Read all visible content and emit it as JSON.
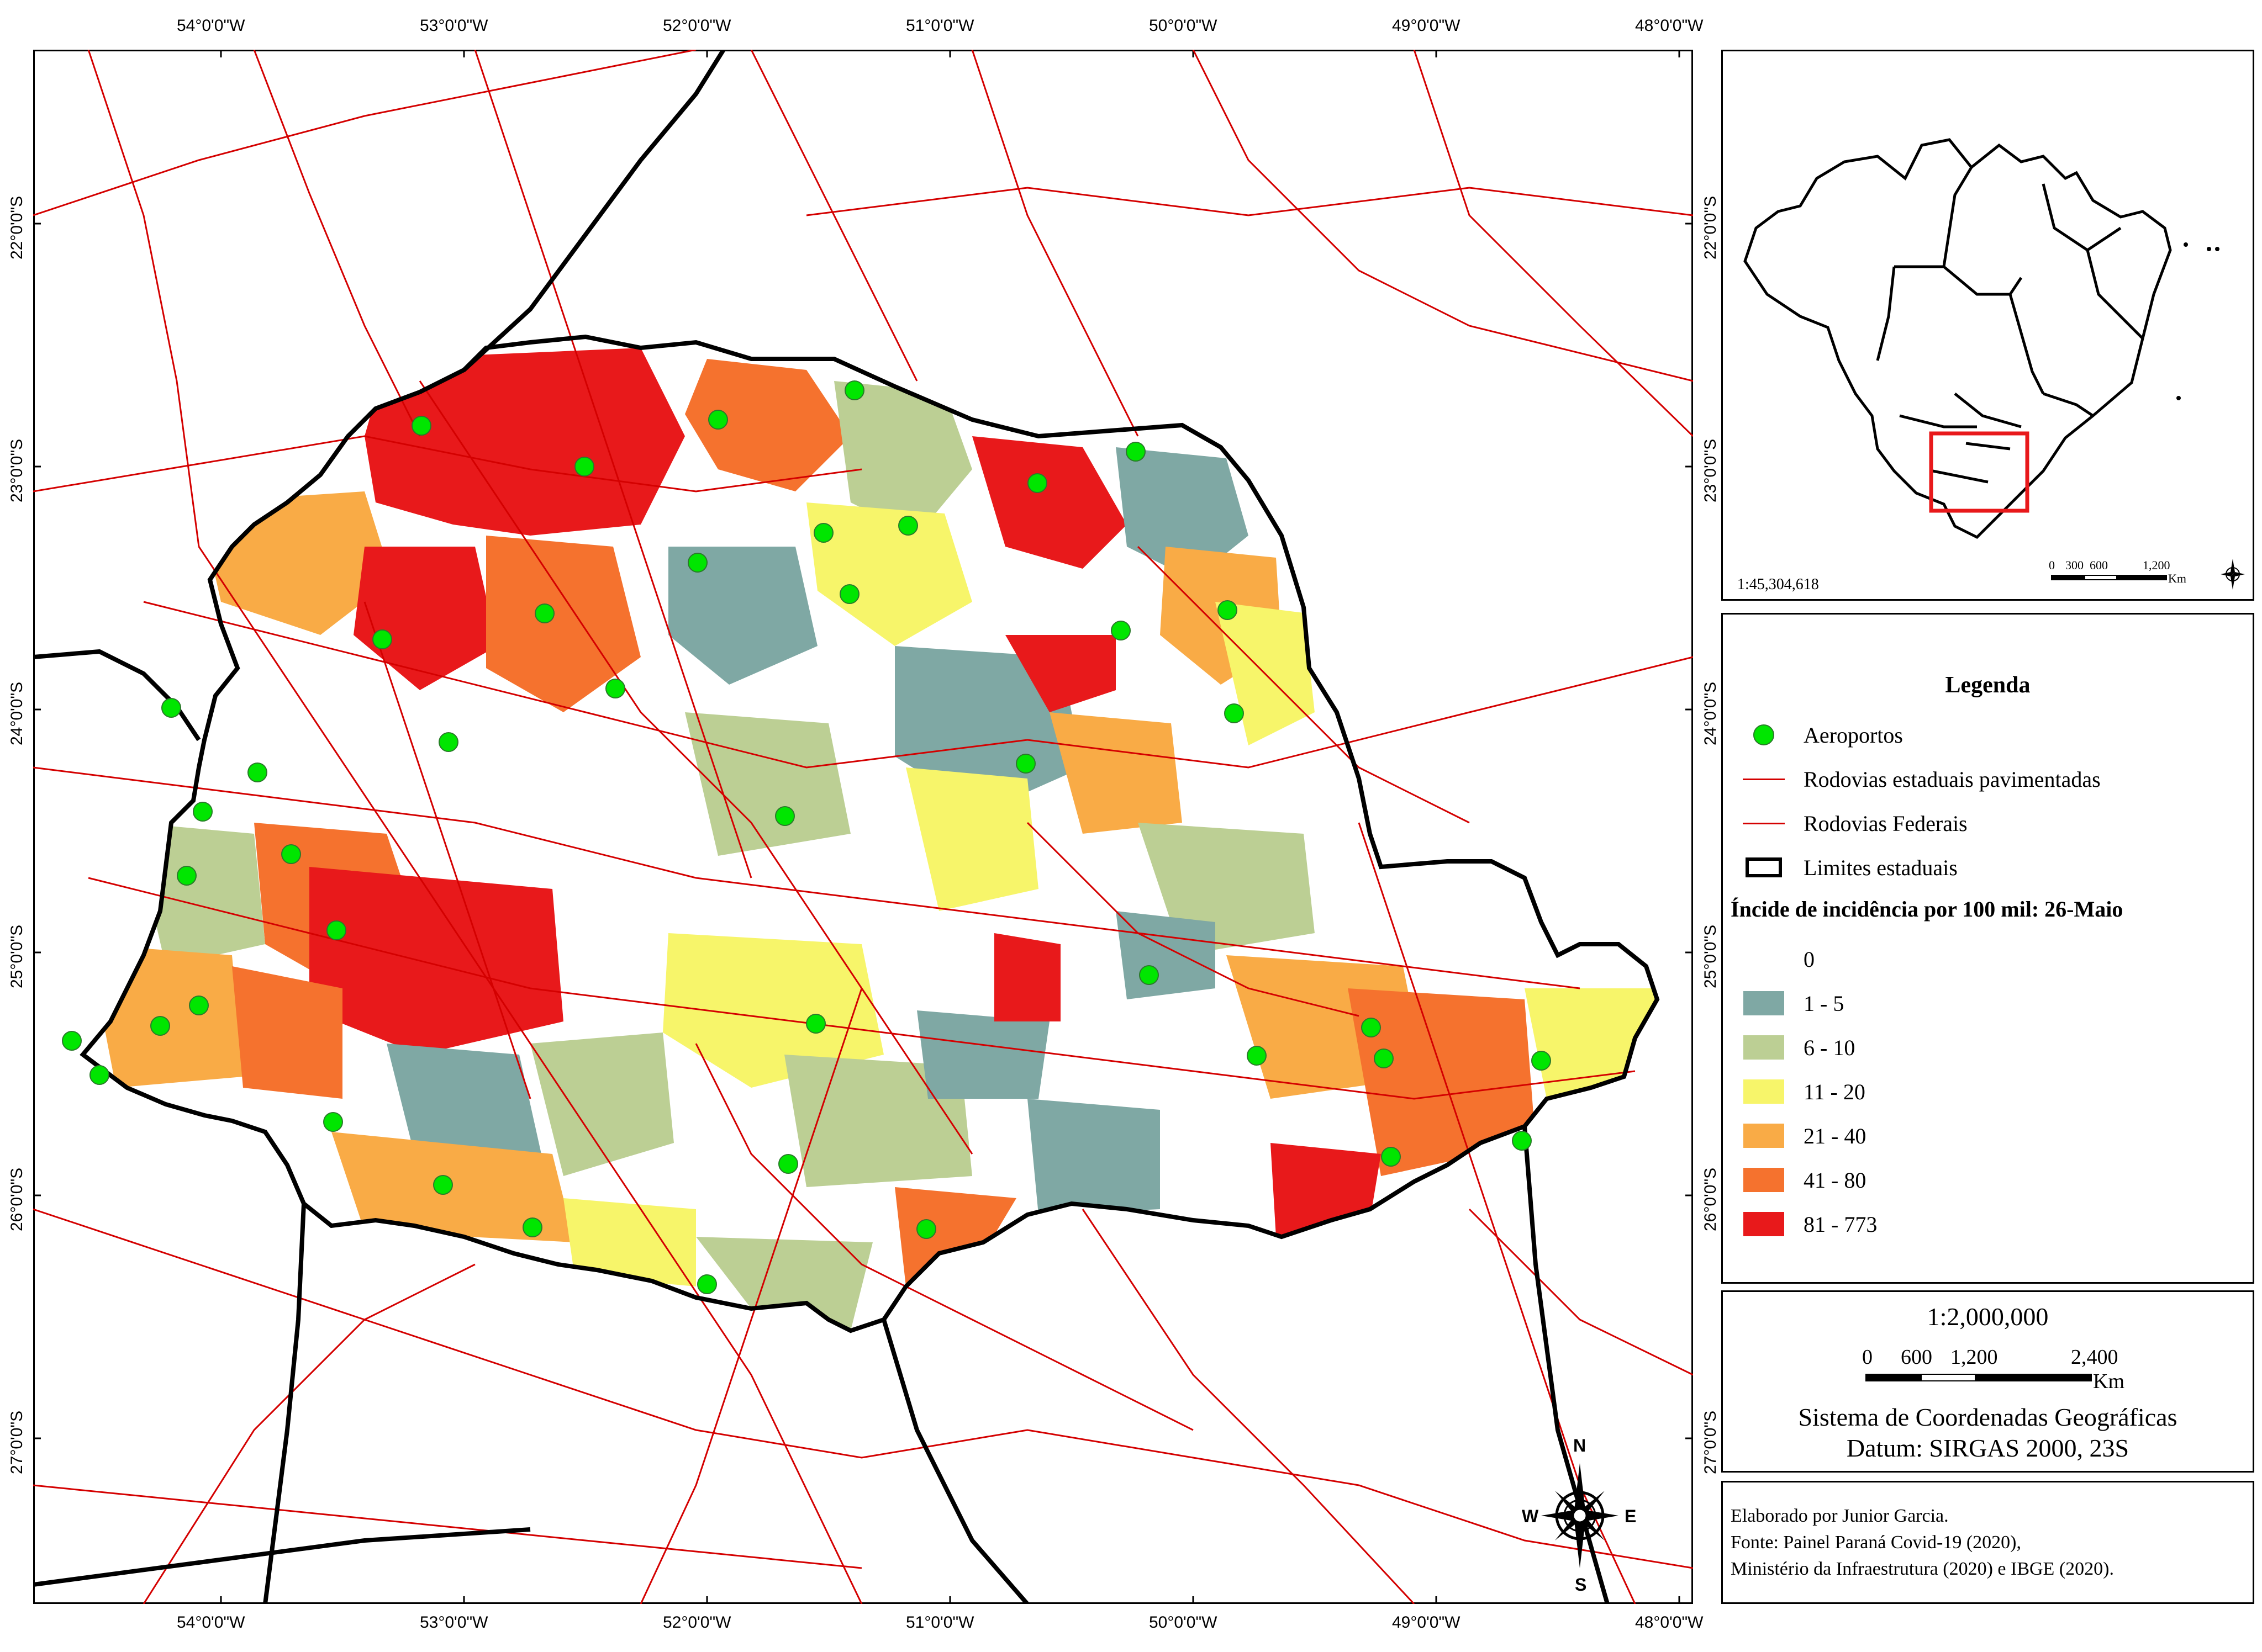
{
  "map": {
    "lon_labels": [
      "54°0'0\"W",
      "53°0'0\"W",
      "52°0'0\"W",
      "51°0'0\"W",
      "50°0'0\"W",
      "49°0'0\"W",
      "48°0'0\"W"
    ],
    "lat_labels": [
      "22°0'0\"S",
      "23°0'0\"S",
      "24°0'0\"S",
      "25°0'0\"S",
      "26°0'0\"S",
      "27°0'0\"S"
    ],
    "north_arrow": {
      "n": "N",
      "s": "S",
      "e": "E",
      "w": "W"
    },
    "colors": {
      "road": "#d40000",
      "state_limit": "#000000",
      "airport": "#00e600",
      "class_1_5": "#7fa8a4",
      "class_6_10": "#bccf94",
      "class_11_20": "#f7f56a",
      "class_21_40": "#f9ab46",
      "class_41_80": "#f5722e",
      "class_81_773": "#e8191b"
    }
  },
  "inset": {
    "scale": "1:45,304,618",
    "scalebar": {
      "labels": [
        "0",
        "300",
        "600",
        "1,200"
      ],
      "unit": "Km"
    }
  },
  "legend": {
    "title": "Legenda",
    "items": [
      {
        "label": "Aeroportos"
      },
      {
        "label": "Rodovias estaduais pavimentadas"
      },
      {
        "label": "Rodovias Federais"
      },
      {
        "label": "Limites estaduais"
      }
    ],
    "class_title": "Íncide de incidência por 100 mil: 26-Maio",
    "classes": [
      {
        "label": "0",
        "color": "#ffffff"
      },
      {
        "label": "1 - 5",
        "color": "#7fa8a4"
      },
      {
        "label": "6 - 10",
        "color": "#bccf94"
      },
      {
        "label": "11 - 20",
        "color": "#f7f56a"
      },
      {
        "label": "21 - 40",
        "color": "#f9ab46"
      },
      {
        "label": "41 - 80",
        "color": "#f5722e"
      },
      {
        "label": "81 - 773",
        "color": "#e8191b"
      }
    ]
  },
  "scale_box": {
    "ratio": "1:2,000,000",
    "bar_labels": [
      "0",
      "600",
      "1,200",
      "2,400"
    ],
    "unit": "Km",
    "crs": "Sistema de Coordenadas Geográficas",
    "datum": "Datum: SIRGAS 2000, 23S"
  },
  "credits": [
    "Elaborado por Junior Garcia.",
    "Fonte: Painel Paraná Covid-19 (2020),",
    "Ministério da Infraestrutura (2020) e IBGE (2020)."
  ]
}
